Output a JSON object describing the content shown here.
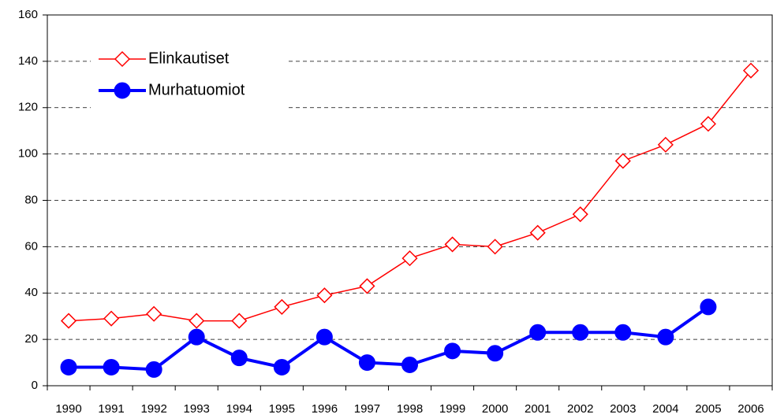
{
  "chart_data": {
    "type": "line",
    "categories": [
      "1990",
      "1991",
      "1992",
      "1993",
      "1994",
      "1995",
      "1996",
      "1997",
      "1998",
      "1999",
      "2000",
      "2001",
      "2002",
      "2003",
      "2004",
      "2005",
      "2006"
    ],
    "series": [
      {
        "name": "Elinkautiset",
        "color": "#ff0000",
        "marker": "diamond",
        "values": [
          28,
          29,
          31,
          28,
          28,
          34,
          39,
          43,
          55,
          61,
          60,
          66,
          74,
          97,
          104,
          113,
          136
        ]
      },
      {
        "name": "Murhatuomiot",
        "color": "#0000ff",
        "marker": "circle",
        "values": [
          8,
          8,
          7,
          21,
          12,
          8,
          21,
          10,
          9,
          15,
          14,
          23,
          23,
          23,
          21,
          34,
          null
        ]
      }
    ],
    "ylim": [
      0,
      160
    ],
    "yticks": [
      0,
      20,
      40,
      60,
      80,
      100,
      120,
      140,
      160
    ],
    "grid": true,
    "legend": "upper left"
  }
}
